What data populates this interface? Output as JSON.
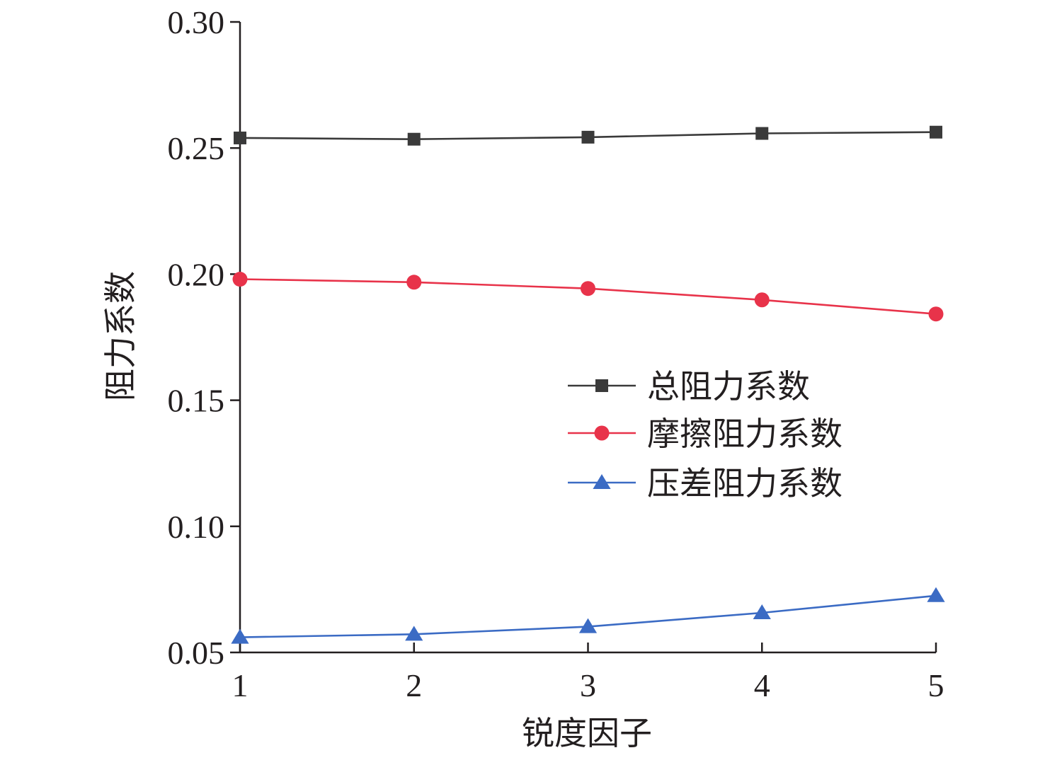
{
  "chart_data": {
    "type": "line",
    "xlabel": "锐度因子",
    "ylabel": "阻力系数",
    "x": [
      1,
      2,
      3,
      4,
      5
    ],
    "xlim": [
      1,
      5
    ],
    "ylim": [
      0.05,
      0.3
    ],
    "x_ticks": [
      "1",
      "2",
      "3",
      "4",
      "5"
    ],
    "y_ticks": [
      "0.05",
      "0.10",
      "0.15",
      "0.20",
      "0.25",
      "0.30"
    ],
    "grid": false,
    "legend_position": "right",
    "series": [
      {
        "name": "总阻力系数",
        "values": [
          0.254,
          0.2535,
          0.2543,
          0.2558,
          0.2563
        ],
        "color": "#3a3a3a",
        "marker": "square"
      },
      {
        "name": "摩擦阻力系数",
        "values": [
          0.198,
          0.1968,
          0.1943,
          0.1898,
          0.1842
        ],
        "color": "#e8334a",
        "marker": "circle"
      },
      {
        "name": "压差阻力系数",
        "values": [
          0.056,
          0.0572,
          0.0602,
          0.0657,
          0.0725
        ],
        "color": "#3b6bc4",
        "marker": "triangle"
      }
    ]
  }
}
